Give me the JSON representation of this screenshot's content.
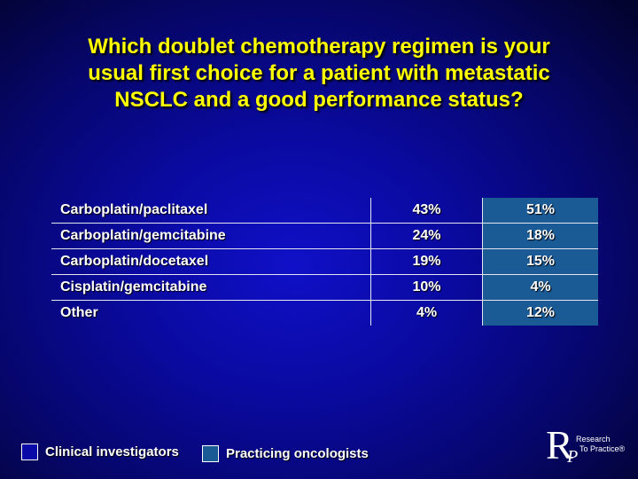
{
  "title": {
    "line1": "Which doublet chemotherapy regimen is your",
    "line2": "usual first choice for a patient with metastatic",
    "line3": "NSCLC and a good performance status?"
  },
  "table": {
    "rows": [
      {
        "label": "Carboplatin/paclitaxel",
        "ci": "43%",
        "po": "51%"
      },
      {
        "label": "Carboplatin/gemcitabine",
        "ci": "24%",
        "po": "18%"
      },
      {
        "label": "Carboplatin/docetaxel",
        "ci": "19%",
        "po": "15%"
      },
      {
        "label": "Cisplatin/gemcitabine",
        "ci": "10%",
        "po": "4%"
      },
      {
        "label": "Other",
        "ci": "4%",
        "po": "12%"
      }
    ]
  },
  "legend": {
    "clinical_investigators": "Clinical investigators",
    "practicing_oncologists": "Practicing oncologists"
  },
  "logo": {
    "letter_r": "R",
    "letter_p": "P",
    "line1": "Research",
    "line2": "To Practice®"
  },
  "colors": {
    "title": "#ffff00",
    "practicing_oncologists_fill": "#1a5a95",
    "background": "#0a0aa0"
  }
}
